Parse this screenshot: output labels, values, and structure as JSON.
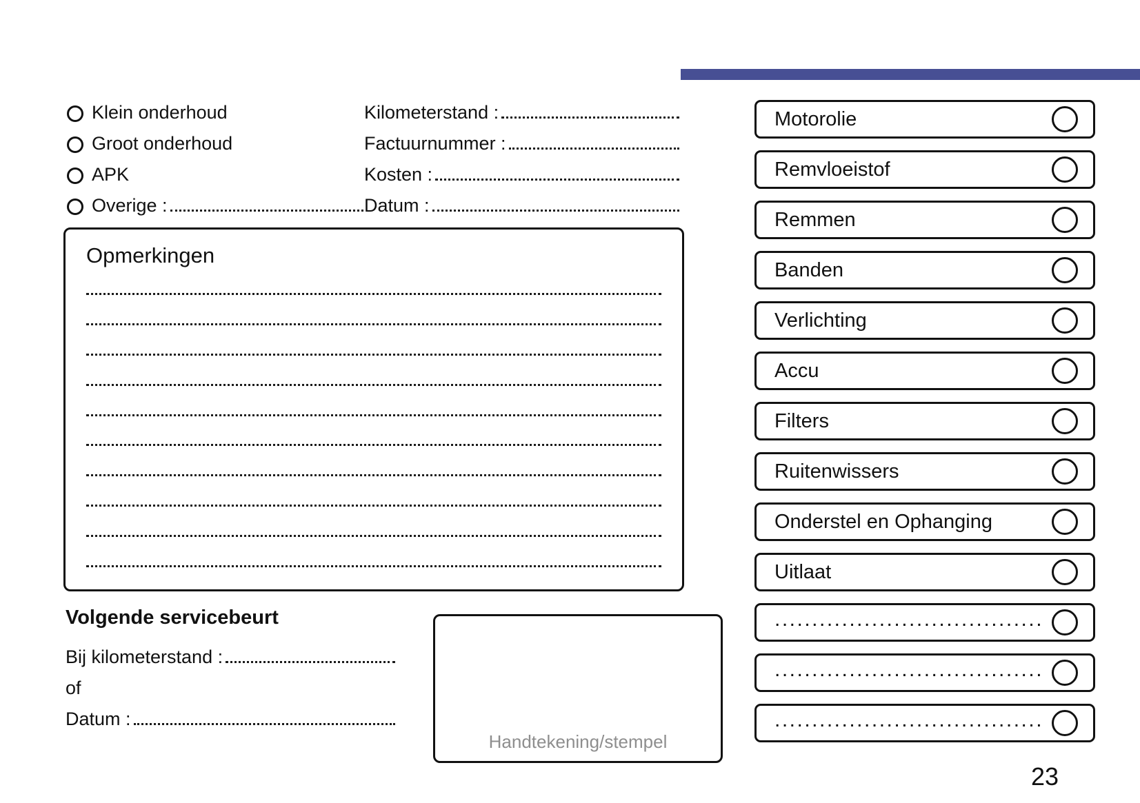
{
  "page": {
    "number": "23",
    "accent_color": "#474f94"
  },
  "service_type": {
    "options": [
      {
        "label": "Klein onderhoud"
      },
      {
        "label": "Groot onderhoud"
      },
      {
        "label": "APK"
      },
      {
        "label": "Overige :"
      }
    ]
  },
  "service_details": {
    "fields": [
      {
        "label": "Kilometerstand :"
      },
      {
        "label": "Factuurnummer :"
      },
      {
        "label": "Kosten :"
      },
      {
        "label": "Datum :"
      }
    ]
  },
  "remarks": {
    "title": "Opmerkingen",
    "line_count": 10
  },
  "next_service": {
    "title": "Volgende servicebeurt",
    "fields": [
      {
        "label": "Bij kilometerstand :"
      },
      {
        "label": "of"
      },
      {
        "label": "Datum :"
      }
    ]
  },
  "signature": {
    "label": "Handtekening/stempel"
  },
  "checklist": {
    "items": [
      "Motorolie",
      "Remvloeistof",
      "Remmen",
      "Banden",
      "Verlichting",
      "Accu",
      "Filters",
      "Ruitenwissers",
      "Onderstel en Ophanging",
      "Uitlaat"
    ],
    "blanks": [
      "......................................",
      "......................................",
      "......................................"
    ]
  }
}
